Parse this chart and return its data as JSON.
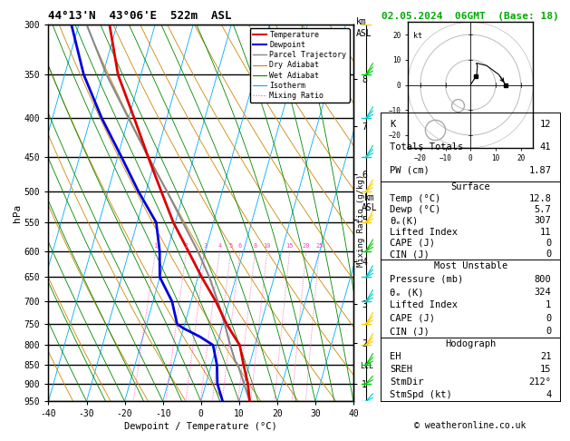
{
  "title": "44°13'N  43°06'E  522m  ASL",
  "date_str": "02.05.2024  06GMT  (Base: 18)",
  "xlabel": "Dewpoint / Temperature (°C)",
  "ylabel_left": "hPa",
  "pres_range": [
    300,
    950
  ],
  "temp_data": {
    "pressures": [
      950,
      900,
      850,
      800,
      780,
      760,
      750,
      700,
      650,
      600,
      550,
      500,
      450,
      400,
      350,
      300
    ],
    "temps": [
      12.8,
      11.0,
      8.5,
      6.0,
      4.0,
      2.0,
      1.0,
      -3.5,
      -9.0,
      -14.5,
      -20.5,
      -26.0,
      -32.0,
      -38.5,
      -46.0,
      -52.0
    ]
  },
  "dewp_data": {
    "pressures": [
      950,
      900,
      850,
      800,
      780,
      760,
      750,
      700,
      650,
      600,
      550,
      500,
      450,
      400,
      350,
      300
    ],
    "dewps": [
      5.7,
      3.0,
      1.5,
      -1.0,
      -5.0,
      -10.0,
      -12.0,
      -15.0,
      -20.0,
      -22.0,
      -25.0,
      -32.0,
      -39.0,
      -47.0,
      -55.0,
      -62.0
    ]
  },
  "parcel_data": {
    "pressures": [
      950,
      900,
      850,
      840,
      800,
      750,
      700,
      650,
      600,
      550,
      500,
      450,
      400,
      350,
      300
    ],
    "temps": [
      12.8,
      10.0,
      7.0,
      6.0,
      3.5,
      0.5,
      -3.0,
      -7.0,
      -12.0,
      -18.0,
      -24.5,
      -32.0,
      -40.0,
      -49.0,
      -58.0
    ]
  },
  "km_ticks": [
    1,
    2,
    3,
    4,
    5,
    6,
    7,
    8
  ],
  "km_pressures": [
    900,
    795,
    705,
    620,
    545,
    475,
    410,
    355
  ],
  "lcl_pressure": 853,
  "skew_factor": 28,
  "colors": {
    "temperature": "#dd0000",
    "dewpoint": "#0000dd",
    "parcel": "#888888",
    "dry_adiabat": "#cc8800",
    "wet_adiabat": "#008800",
    "isotherm": "#00aaff",
    "mixing_ratio": "#ff44bb",
    "background": "#ffffff"
  },
  "wind_barb_data": {
    "pressures": [
      950,
      900,
      850,
      800,
      750,
      700,
      650,
      600,
      550,
      500,
      450,
      400,
      350,
      300
    ],
    "u": [
      1,
      1,
      1,
      1,
      2,
      2,
      2,
      3,
      3,
      3,
      4,
      4,
      5,
      5
    ],
    "v": [
      2,
      2,
      3,
      3,
      4,
      4,
      5,
      5,
      6,
      7,
      8,
      9,
      10,
      11
    ],
    "colors": [
      "#00cccc",
      "#00cc00",
      "#00cc00",
      "#ffcc00",
      "#ffcc00",
      "#00cccc",
      "#00cccc",
      "#00cc00",
      "#ffcc00",
      "#ffcc00",
      "#00cccc",
      "#00cccc",
      "#00cc00",
      "#ffcc00"
    ]
  },
  "stats": {
    "K": 12,
    "TotTot": 41,
    "PW": 1.87,
    "surf_temp": 12.8,
    "surf_dewp": 5.7,
    "surf_theta_e": 307,
    "surf_li": 11,
    "surf_cape": 0,
    "surf_cin": 0,
    "mu_pressure": 800,
    "mu_theta_e": 324,
    "mu_li": 1,
    "mu_cape": 0,
    "mu_cin": 0,
    "EH": 21,
    "SREH": 15,
    "StmDir": 212,
    "StmSpd": 4
  },
  "copyright": "© weatheronline.co.uk"
}
